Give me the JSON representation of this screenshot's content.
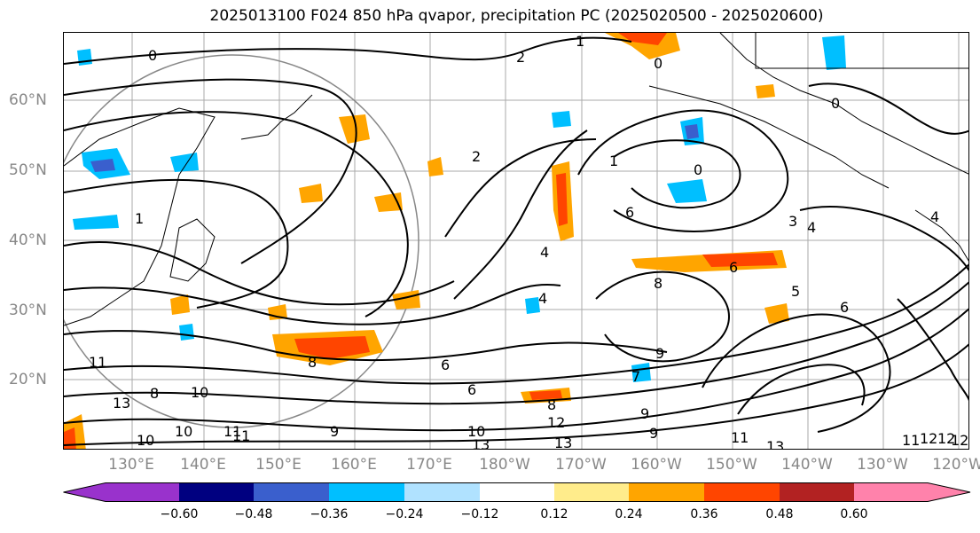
{
  "title": "2025013100 F024 850 hPa qvapor, precipitation PC (2025020500 - 2025020600)",
  "map": {
    "lat_labels": [
      "60°N",
      "50°N",
      "40°N",
      "30°N",
      "20°N"
    ],
    "lon_labels": [
      "130°E",
      "140°E",
      "150°E",
      "160°E",
      "170°E",
      "180°W",
      "170°W",
      "160°W",
      "150°W",
      "140°W",
      "130°W",
      "120°W"
    ],
    "contour_labels": [
      "0",
      "1",
      "2",
      "1",
      "0",
      "0",
      "2",
      "1",
      "0",
      "4",
      "6",
      "3",
      "4",
      "4",
      "4",
      "5",
      "6",
      "8",
      "6",
      "7",
      "9",
      "6",
      "8",
      "10",
      "11",
      "13",
      "10",
      "12",
      "11",
      "12",
      "13",
      "11",
      "13",
      "9",
      "9",
      "12",
      "11",
      "10",
      "8",
      "6",
      "8",
      "9",
      "10",
      "13",
      "11",
      "12"
    ]
  },
  "colorbar": {
    "colors": [
      "#9932cc",
      "#000080",
      "#3a5fcd",
      "#00bfff",
      "#b0e2ff",
      "#ffffff",
      "#ffec8b",
      "#ffa500",
      "#ff4500",
      "#b22222",
      "#ff82ab"
    ],
    "tick_labels": [
      "−0.60",
      "−0.48",
      "−0.36",
      "−0.24",
      "−0.12",
      "0.12",
      "0.24",
      "0.36",
      "0.48",
      "0.60"
    ]
  }
}
